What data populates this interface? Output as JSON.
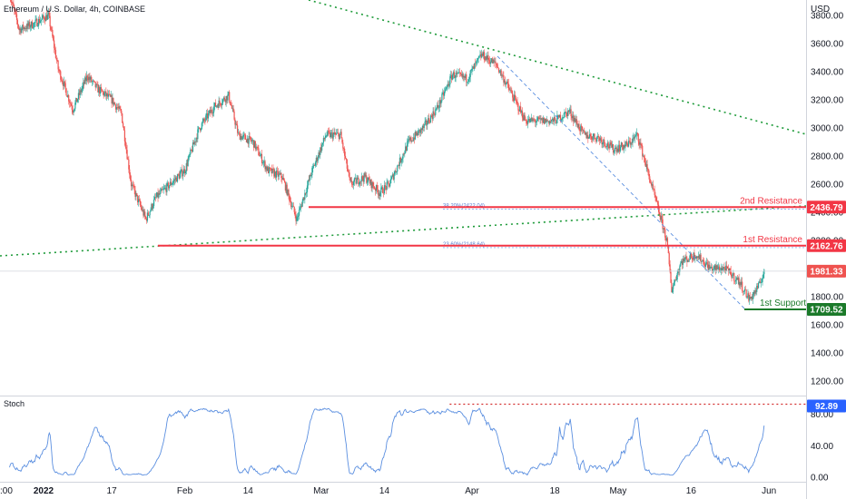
{
  "header": {
    "symbol_title": "Ethereum / U.S. Dollar, 4h, COINBASE",
    "currency": "USD"
  },
  "colors": {
    "up": "#26a69a",
    "down": "#ef5350",
    "resistance": "#f23645",
    "support": "#1b7a2a",
    "trend_dotted": "#1e9b3a",
    "fib_dashed": "#5b8fe0",
    "stoch_line": "#5b8fe0",
    "stoch_level": "#d32f2f"
  },
  "chart_data": [
    {
      "type": "candlestick",
      "title": "Ethereum / U.S. Dollar, 4h, COINBASE",
      "ylim": [
        1080,
        3780
      ],
      "y_ticks": [
        1200,
        1400,
        1600,
        1800,
        2000,
        2200,
        2400,
        2600,
        2800,
        3000,
        3200,
        3400,
        3600,
        3800
      ],
      "y_tick_labels": [
        "1200.00",
        "1400.00",
        "1600.00",
        "1800.00",
        "2000.00",
        "2200.00",
        "2400.00",
        "2600.00",
        "2800.00",
        "3000.00",
        "3200.00",
        "3400.00",
        "3600.00",
        "3800.00"
      ],
      "x_tick_labels": [
        ":00",
        "2022",
        "17",
        "Feb",
        "14",
        "Mar",
        "14",
        "Apr",
        "18",
        "May",
        "16",
        "Jun"
      ],
      "x_tick_dates": [
        "2021-12-28",
        "2022-01-03",
        "2022-01-17",
        "2022-02-01",
        "2022-02-14",
        "2022-03-01",
        "2022-03-14",
        "2022-04-01",
        "2022-04-18",
        "2022-05-01",
        "2022-05-16",
        "2022-06-01"
      ],
      "price_path": [
        [
          "2021-12-27",
          3950
        ],
        [
          "2021-12-29",
          3700
        ],
        [
          "2022-01-01",
          3740
        ],
        [
          "2022-01-04",
          3800
        ],
        [
          "2022-01-06",
          3420
        ],
        [
          "2022-01-09",
          3130
        ],
        [
          "2022-01-12",
          3370
        ],
        [
          "2022-01-14",
          3280
        ],
        [
          "2022-01-17",
          3200
        ],
        [
          "2022-01-19",
          3100
        ],
        [
          "2022-01-21",
          2600
        ],
        [
          "2022-01-24",
          2350
        ],
        [
          "2022-01-26",
          2500
        ],
        [
          "2022-01-29",
          2600
        ],
        [
          "2022-02-01",
          2700
        ],
        [
          "2022-02-04",
          3000
        ],
        [
          "2022-02-07",
          3150
        ],
        [
          "2022-02-10",
          3230
        ],
        [
          "2022-02-12",
          2950
        ],
        [
          "2022-02-15",
          2900
        ],
        [
          "2022-02-18",
          2700
        ],
        [
          "2022-02-21",
          2650
        ],
        [
          "2022-02-24",
          2350
        ],
        [
          "2022-02-27",
          2680
        ],
        [
          "2022-03-02",
          2950
        ],
        [
          "2022-03-05",
          2950
        ],
        [
          "2022-03-07",
          2600
        ],
        [
          "2022-03-10",
          2650
        ],
        [
          "2022-03-13",
          2540
        ],
        [
          "2022-03-15",
          2600
        ],
        [
          "2022-03-19",
          2900
        ],
        [
          "2022-03-22",
          3000
        ],
        [
          "2022-03-25",
          3150
        ],
        [
          "2022-03-28",
          3380
        ],
        [
          "2022-03-31",
          3350
        ],
        [
          "2022-04-03",
          3520
        ],
        [
          "2022-04-06",
          3450
        ],
        [
          "2022-04-09",
          3250
        ],
        [
          "2022-04-12",
          3050
        ],
        [
          "2022-04-15",
          3050
        ],
        [
          "2022-04-18",
          3050
        ],
        [
          "2022-04-21",
          3120
        ],
        [
          "2022-04-24",
          2950
        ],
        [
          "2022-04-27",
          2930
        ],
        [
          "2022-04-30",
          2850
        ],
        [
          "2022-05-03",
          2880
        ],
        [
          "2022-05-05",
          2950
        ],
        [
          "2022-05-07",
          2700
        ],
        [
          "2022-05-09",
          2450
        ],
        [
          "2022-05-11",
          2200
        ],
        [
          "2022-05-12",
          1850
        ],
        [
          "2022-05-14",
          2050
        ],
        [
          "2022-05-17",
          2100
        ],
        [
          "2022-05-20",
          2000
        ],
        [
          "2022-05-23",
          2000
        ],
        [
          "2022-05-26",
          1900
        ],
        [
          "2022-05-28",
          1780
        ],
        [
          "2022-05-30",
          1880
        ],
        [
          "2022-05-31",
          1981
        ]
      ],
      "levels": [
        {
          "label": "2nd Resistance",
          "value": 2436.79,
          "badge": "2436.79"
        },
        {
          "label": "1st Resistance",
          "value": 2162.76,
          "badge": "2162.76"
        },
        {
          "label": "1st Support",
          "value": 1709.52,
          "badge": "1709.52"
        }
      ],
      "current_price": {
        "value": 1981.33,
        "badge": "1981.33"
      },
      "fib_labels": [
        "38.20%(2422.04)",
        "23.60%(2148.64)"
      ],
      "fib_values": [
        2422.04,
        2148.64
      ]
    },
    {
      "type": "line",
      "title": "Stoch",
      "ylim": [
        0,
        100
      ],
      "y_tick_labels": [
        "0.00",
        "40.00",
        "80.00"
      ],
      "y_ticks": [
        0,
        40,
        80
      ],
      "current_value": {
        "value": 92.89,
        "badge": "92.89"
      },
      "overbought_level": 92.89
    }
  ]
}
